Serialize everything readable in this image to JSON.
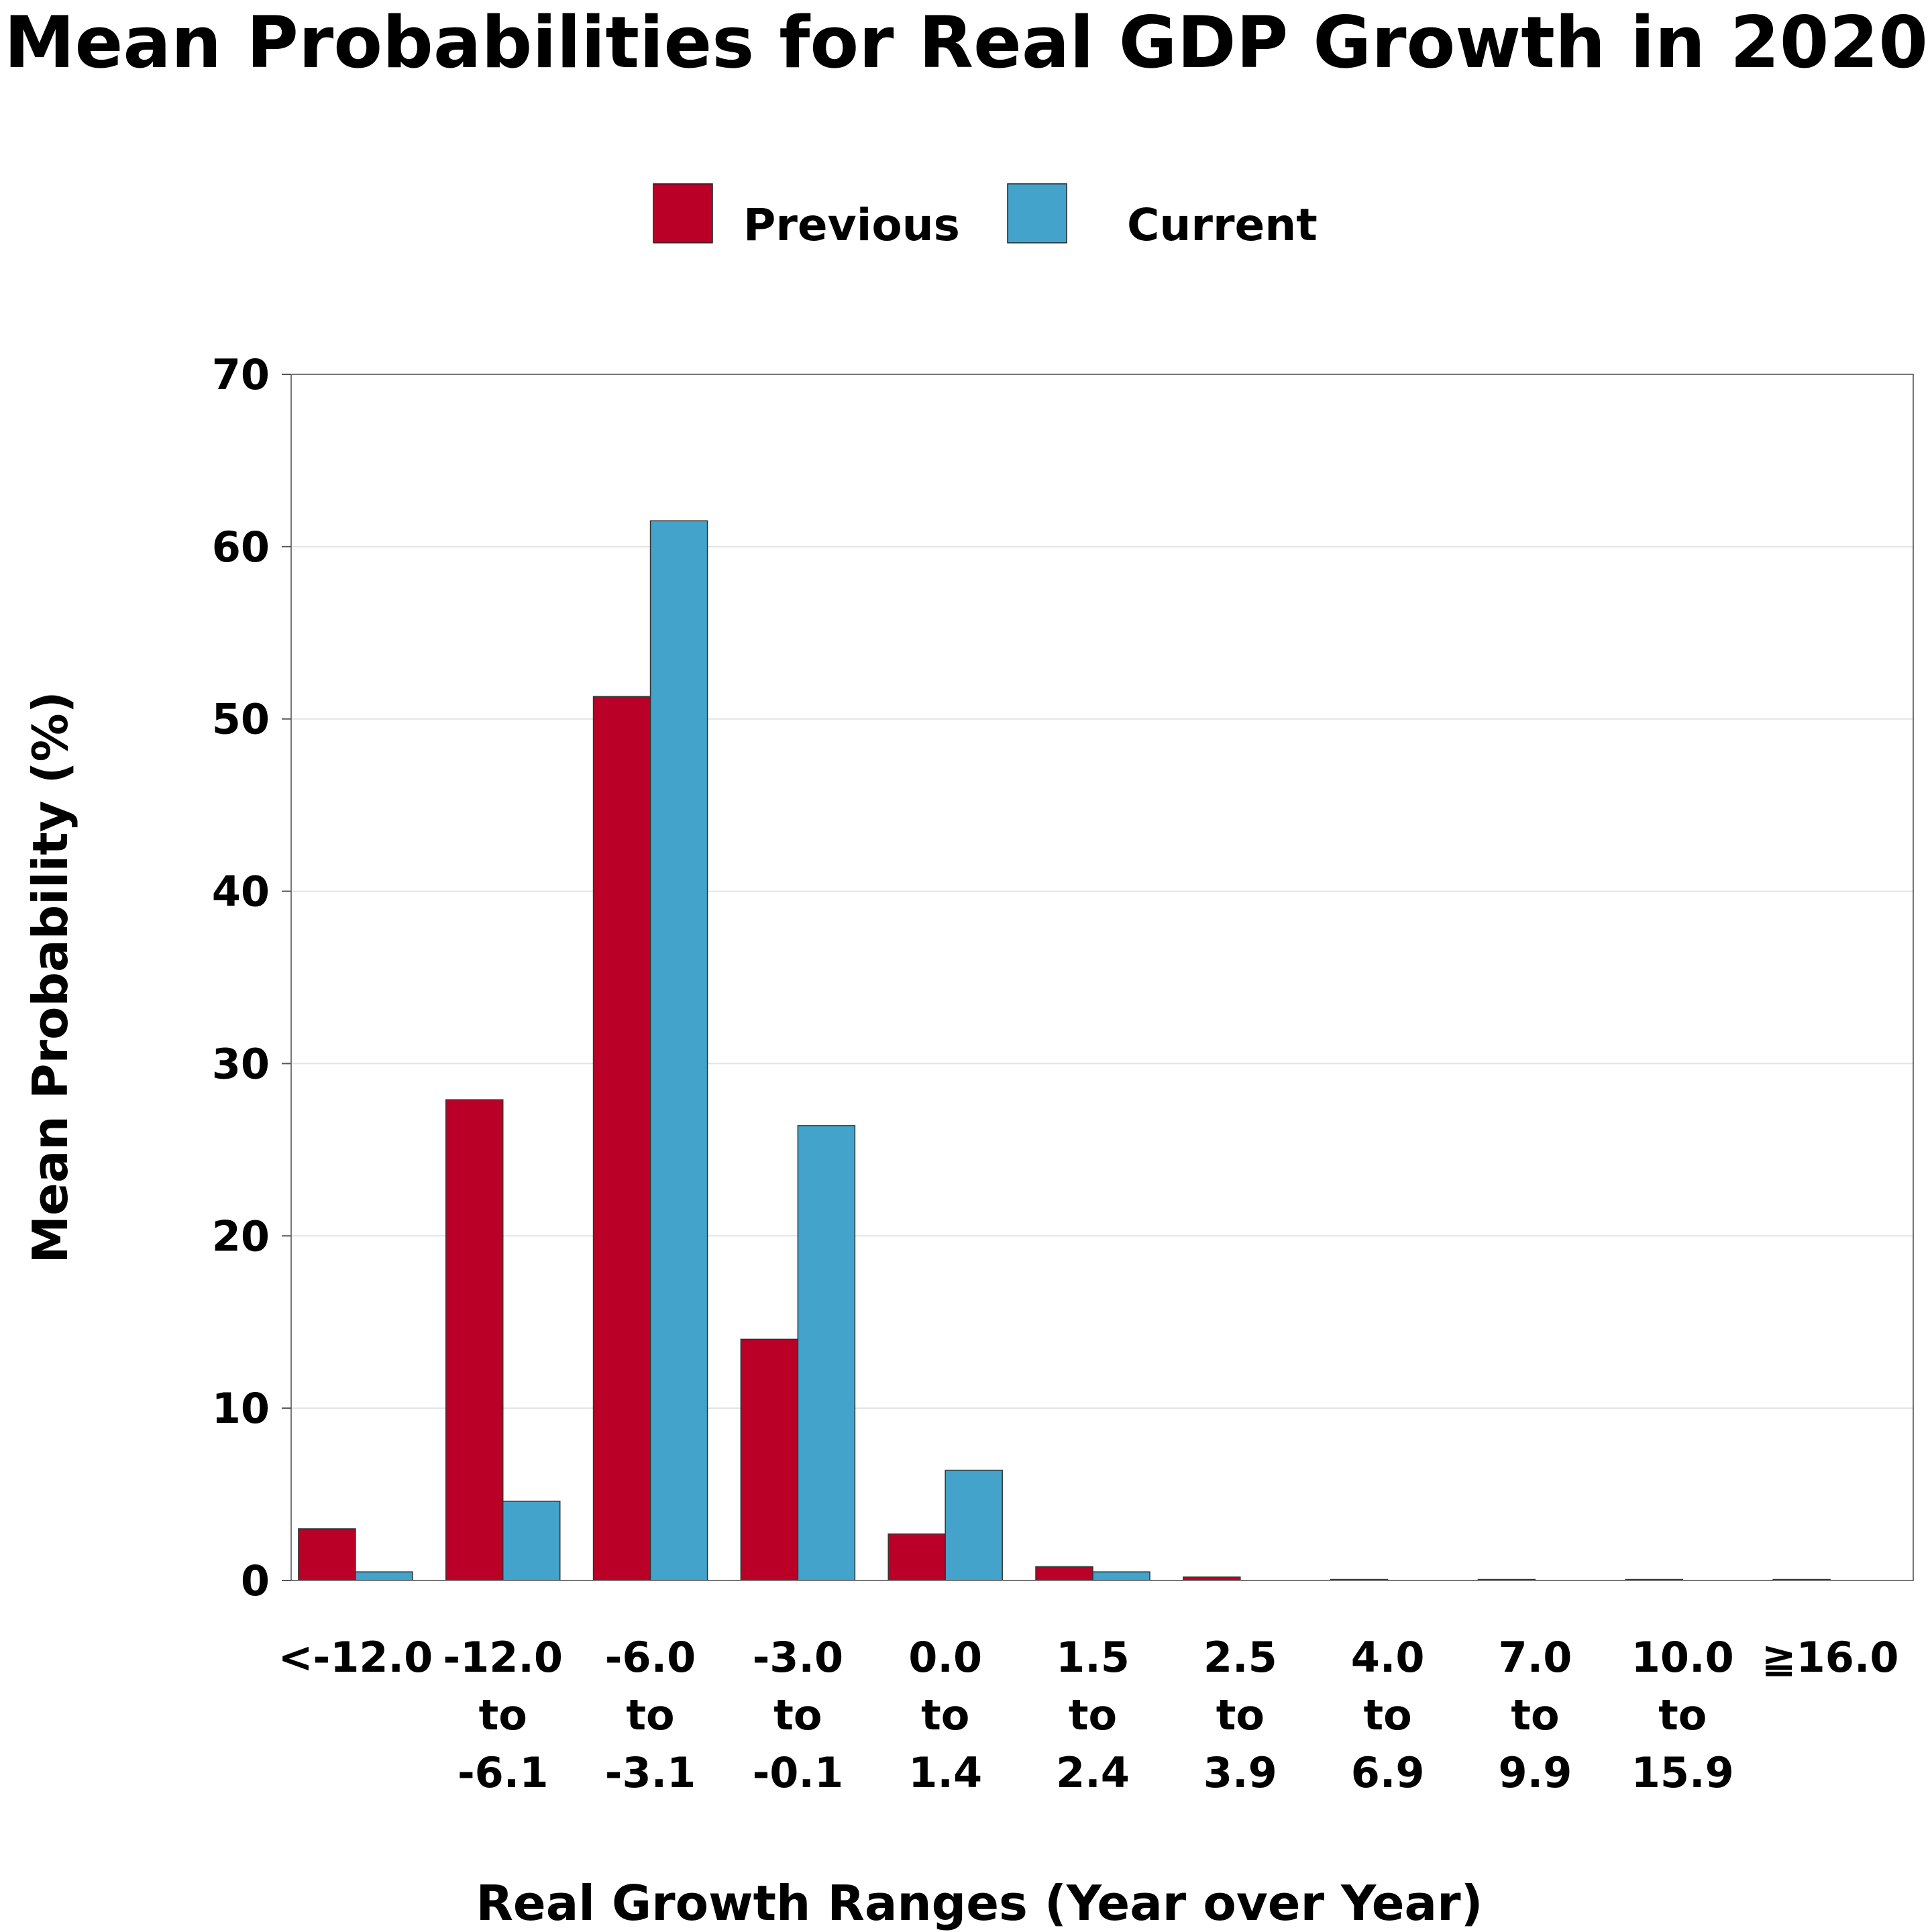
{
  "chart_data": {
    "type": "bar",
    "title": "Mean Probabilities for Real GDP Growth in 2020",
    "xlabel": "Real Growth Ranges (Year over Year)",
    "ylabel": "Mean Probability (%)",
    "ylim": [
      0,
      70
    ],
    "yticks": [
      0,
      10,
      20,
      30,
      40,
      50,
      60,
      70
    ],
    "grid": true,
    "legend_position": "top-center",
    "categories": [
      [
        "<-12.0"
      ],
      [
        "-12.0",
        "to",
        "-6.1"
      ],
      [
        "-6.0",
        "to",
        "-3.1"
      ],
      [
        "-3.0",
        "to",
        "-0.1"
      ],
      [
        "0.0",
        "to",
        "1.4"
      ],
      [
        "1.5",
        "to",
        "2.4"
      ],
      [
        "2.5",
        "to",
        "3.9"
      ],
      [
        "4.0",
        "to",
        "6.9"
      ],
      [
        "7.0",
        "to",
        "9.9"
      ],
      [
        "10.0",
        "to",
        "15.9"
      ],
      [
        "≧16.0"
      ]
    ],
    "series": [
      {
        "name": "Previous",
        "color": "#BB0027",
        "values": [
          3.0,
          27.9,
          51.3,
          14.0,
          2.7,
          0.8,
          0.2,
          0.05,
          0.05,
          0.05,
          0.05
        ]
      },
      {
        "name": "Current",
        "color": "#43A3CA",
        "values": [
          0.5,
          4.6,
          61.5,
          26.4,
          6.4,
          0.5,
          0.0,
          0.0,
          0.0,
          0.0,
          0.0
        ]
      }
    ]
  }
}
